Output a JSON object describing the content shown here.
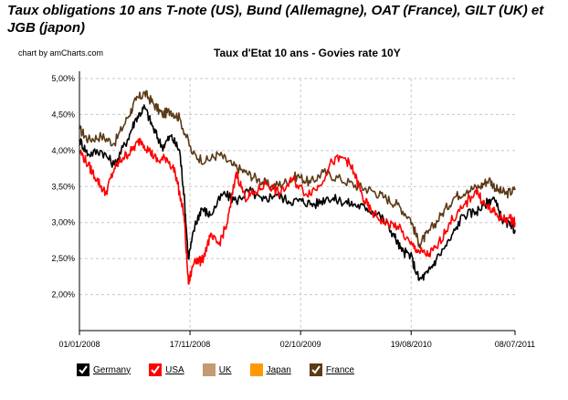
{
  "header": {
    "title": "Taux obligations 10 ans T-note (US), Bund (Allemagne), OAT (France), GILT (UK) et JGB (japon)",
    "credit": "chart by amCharts.com"
  },
  "chart_data": {
    "type": "line",
    "title": "Taux d'Etat 10 ans - Govies rate 10Y",
    "xlabel": "",
    "ylabel": "",
    "ylim": [
      1.5,
      5.0
    ],
    "yticks": [
      {
        "value": 2.0,
        "label": "2,00%"
      },
      {
        "value": 2.5,
        "label": "2,50%"
      },
      {
        "value": 3.0,
        "label": "3,00%"
      },
      {
        "value": 3.5,
        "label": "3,50%"
      },
      {
        "value": 4.0,
        "label": "4,00%"
      },
      {
        "value": 4.5,
        "label": "4,50%"
      },
      {
        "value": 5.0,
        "label": "5,00%"
      }
    ],
    "xrange": [
      0,
      1
    ],
    "xticks": [
      {
        "pos": 0.0,
        "label": "01/01/2008"
      },
      {
        "pos": 0.2538,
        "label": "17/11/2008"
      },
      {
        "pos": 0.5077,
        "label": "02/10/2009"
      },
      {
        "pos": 0.7615,
        "label": "19/08/2010"
      },
      {
        "pos": 1.0,
        "label": "08/07/2011"
      }
    ],
    "legend": [
      {
        "name": "Germany",
        "color": "#000000"
      },
      {
        "name": "USA",
        "color": "#ff0000"
      },
      {
        "name": "UK",
        "color": "#c49a72"
      },
      {
        "name": "Japan",
        "color": "#ff9900"
      },
      {
        "name": "France",
        "color": "#5c3a17"
      }
    ],
    "series": [
      {
        "name": "France",
        "color": "#5c3a17",
        "x": [
          0.0,
          0.02,
          0.05,
          0.08,
          0.11,
          0.13,
          0.15,
          0.17,
          0.19,
          0.21,
          0.23,
          0.26,
          0.29,
          0.32,
          0.35,
          0.38,
          0.41,
          0.44,
          0.47,
          0.5,
          0.53,
          0.56,
          0.6,
          0.64,
          0.67,
          0.7,
          0.73,
          0.76,
          0.78,
          0.8,
          0.83,
          0.86,
          0.89,
          0.92,
          0.94,
          0.96,
          0.98,
          1.0
        ],
        "values": [
          4.3,
          4.15,
          4.2,
          4.1,
          4.45,
          4.7,
          4.8,
          4.65,
          4.5,
          4.55,
          4.45,
          3.95,
          3.85,
          3.95,
          3.8,
          3.7,
          3.6,
          3.5,
          3.55,
          3.65,
          3.55,
          3.7,
          3.6,
          3.5,
          3.45,
          3.35,
          3.25,
          3.05,
          2.7,
          2.85,
          3.1,
          3.35,
          3.45,
          3.5,
          3.6,
          3.45,
          3.4,
          3.45
        ]
      },
      {
        "name": "Germany",
        "color": "#000000",
        "x": [
          0.0,
          0.02,
          0.05,
          0.08,
          0.11,
          0.13,
          0.15,
          0.17,
          0.19,
          0.21,
          0.23,
          0.24,
          0.25,
          0.265,
          0.28,
          0.3,
          0.33,
          0.36,
          0.39,
          0.42,
          0.45,
          0.48,
          0.51,
          0.54,
          0.57,
          0.6,
          0.63,
          0.66,
          0.69,
          0.72,
          0.74,
          0.76,
          0.78,
          0.8,
          0.82,
          0.85,
          0.88,
          0.91,
          0.93,
          0.95,
          0.97,
          0.99,
          1.0
        ],
        "values": [
          4.15,
          3.95,
          4.0,
          3.8,
          4.15,
          4.45,
          4.6,
          4.3,
          4.05,
          4.2,
          4.0,
          3.4,
          2.5,
          2.95,
          3.2,
          3.1,
          3.4,
          3.3,
          3.45,
          3.3,
          3.4,
          3.3,
          3.3,
          3.25,
          3.35,
          3.3,
          3.25,
          3.2,
          3.1,
          2.85,
          2.6,
          2.55,
          2.2,
          2.3,
          2.5,
          2.75,
          3.1,
          3.15,
          3.25,
          3.35,
          3.05,
          2.95,
          2.9
        ]
      },
      {
        "name": "USA",
        "color": "#ff0000",
        "x": [
          0.0,
          0.02,
          0.04,
          0.06,
          0.08,
          0.1,
          0.12,
          0.14,
          0.16,
          0.18,
          0.2,
          0.22,
          0.24,
          0.25,
          0.265,
          0.28,
          0.3,
          0.32,
          0.34,
          0.36,
          0.38,
          0.4,
          0.43,
          0.46,
          0.49,
          0.52,
          0.55,
          0.58,
          0.61,
          0.63,
          0.65,
          0.67,
          0.7,
          0.73,
          0.76,
          0.78,
          0.8,
          0.82,
          0.85,
          0.88,
          0.91,
          0.93,
          0.95,
          0.97,
          0.99,
          1.0
        ],
        "values": [
          4.0,
          3.8,
          3.6,
          3.4,
          3.75,
          3.9,
          4.0,
          4.15,
          4.0,
          3.85,
          3.9,
          3.7,
          3.1,
          2.15,
          2.5,
          2.45,
          2.8,
          2.7,
          3.0,
          3.7,
          3.35,
          3.4,
          3.55,
          3.4,
          3.6,
          3.4,
          3.5,
          3.85,
          3.9,
          3.7,
          3.35,
          3.15,
          3.0,
          2.95,
          2.7,
          2.6,
          2.55,
          2.65,
          3.0,
          3.2,
          3.45,
          3.25,
          3.15,
          3.05,
          3.05,
          3.0
        ]
      }
    ]
  }
}
